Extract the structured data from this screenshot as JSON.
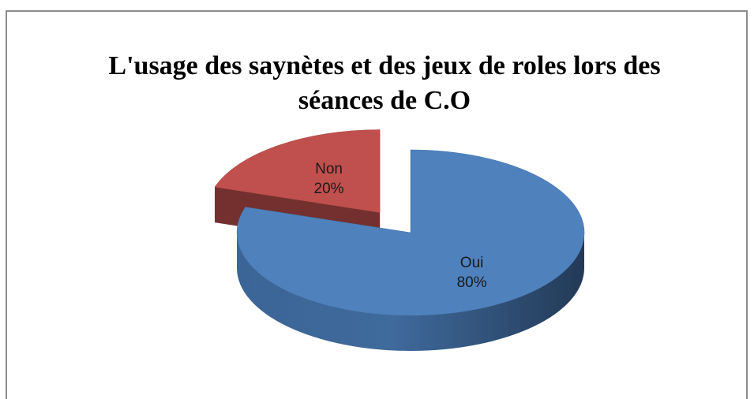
{
  "chart_data": {
    "type": "pie",
    "title": "L'usage des saynètes et des jeux de roles lors des séances de C.O",
    "categories": [
      "Oui",
      "Non"
    ],
    "values": [
      80,
      20
    ],
    "value_labels": [
      "80%",
      "20%"
    ],
    "colors": [
      "#4f81bd",
      "#c0504d"
    ],
    "exploded": [
      false,
      true
    ],
    "three_d": true
  }
}
